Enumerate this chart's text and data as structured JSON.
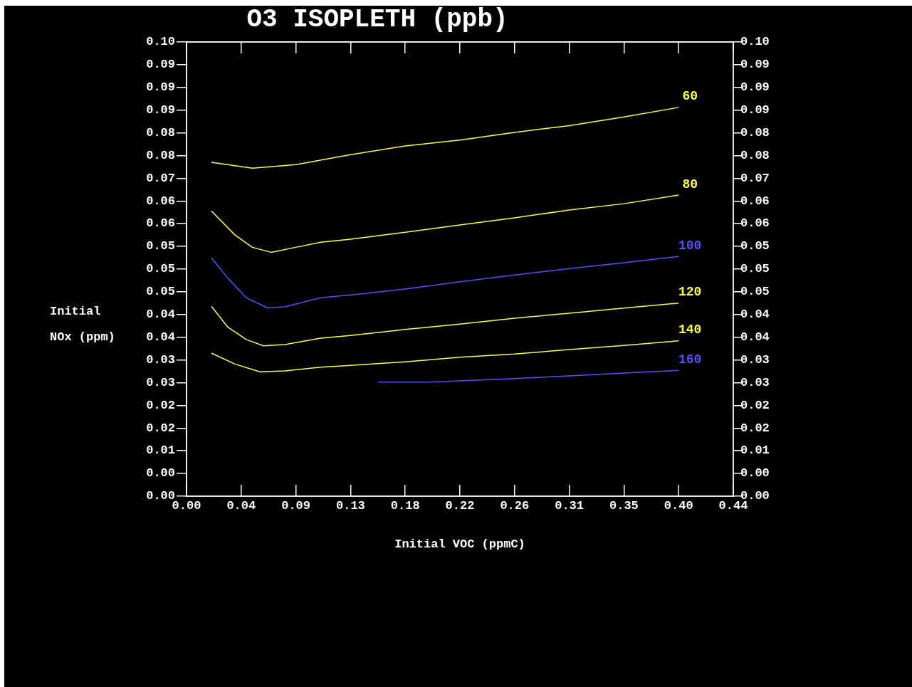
{
  "chart_data": {
    "type": "line",
    "title": "O3 ISOPLETH (ppb)",
    "xlabel": "Initial VOC (ppmC)",
    "ylabel": "Initial NOx (ppm)",
    "marker": "none",
    "xlim": [
      0,
      0.44
    ],
    "xticks": [
      {
        "value": 0,
        "label": "0.00"
      },
      {
        "value": 0.044,
        "label": "0.04"
      },
      {
        "value": 0.088,
        "label": "0.09"
      },
      {
        "value": 0.132,
        "label": "0.13"
      },
      {
        "value": 0.176,
        "label": "0.18"
      },
      {
        "value": 0.22,
        "label": "0.22"
      },
      {
        "value": 0.264,
        "label": "0.26"
      },
      {
        "value": 0.308,
        "label": "0.31"
      },
      {
        "value": 0.352,
        "label": "0.35"
      },
      {
        "value": 0.396,
        "label": "0.40"
      },
      {
        "value": 0.44,
        "label": "0.44"
      }
    ],
    "ylim": [
      0,
      0.1
    ],
    "yticks": [
      {
        "value": 0,
        "label": "0.00"
      },
      {
        "value": 0.005,
        "label": "0.00"
      },
      {
        "value": 0.01,
        "label": "0.01"
      },
      {
        "value": 0.015,
        "label": "0.02"
      },
      {
        "value": 0.02,
        "label": "0.02"
      },
      {
        "value": 0.025,
        "label": "0.03"
      },
      {
        "value": 0.03,
        "label": "0.03"
      },
      {
        "value": 0.035,
        "label": "0.04"
      },
      {
        "value": 0.04,
        "label": "0.04"
      },
      {
        "value": 0.045,
        "label": "0.05"
      },
      {
        "value": 0.05,
        "label": "0.05"
      },
      {
        "value": 0.055,
        "label": "0.05"
      },
      {
        "value": 0.06,
        "label": "0.06"
      },
      {
        "value": 0.065,
        "label": "0.06"
      },
      {
        "value": 0.07,
        "label": "0.07"
      },
      {
        "value": 0.075,
        "label": "0.08"
      },
      {
        "value": 0.08,
        "label": "0.08"
      },
      {
        "value": 0.085,
        "label": "0.09"
      },
      {
        "value": 0.09,
        "label": "0.09"
      },
      {
        "value": 0.095,
        "label": "0.09"
      },
      {
        "value": 0.1,
        "label": "0.10"
      }
    ],
    "y2lim": [
      0,
      0.1
    ],
    "y2ticks": [
      {
        "value": 0,
        "label": "0.00"
      },
      {
        "value": 0.005,
        "label": "0.00"
      },
      {
        "value": 0.01,
        "label": "0.01"
      },
      {
        "value": 0.015,
        "label": "0.02"
      },
      {
        "value": 0.02,
        "label": "0.02"
      },
      {
        "value": 0.025,
        "label": "0.03"
      },
      {
        "value": 0.03,
        "label": "0.03"
      },
      {
        "value": 0.035,
        "label": "0.04"
      },
      {
        "value": 0.04,
        "label": "0.04"
      },
      {
        "value": 0.045,
        "label": "0.05"
      },
      {
        "value": 0.05,
        "label": "0.05"
      },
      {
        "value": 0.055,
        "label": "0.05"
      },
      {
        "value": 0.06,
        "label": "0.06"
      },
      {
        "value": 0.065,
        "label": "0.06"
      },
      {
        "value": 0.07,
        "label": "0.07"
      },
      {
        "value": 0.075,
        "label": "0.08"
      },
      {
        "value": 0.08,
        "label": "0.08"
      },
      {
        "value": 0.085,
        "label": "0.09"
      },
      {
        "value": 0.09,
        "label": "0.09"
      },
      {
        "value": 0.095,
        "label": "0.09"
      },
      {
        "value": 0.1,
        "label": "0.10"
      }
    ],
    "series": [
      {
        "name": "60",
        "color": "#ffff33",
        "x": [
          0.02,
          0.053,
          0.088,
          0.132,
          0.176,
          0.22,
          0.264,
          0.308,
          0.352,
          0.396
        ],
        "values": [
          0.0735,
          0.0722,
          0.073,
          0.0752,
          0.0771,
          0.0784,
          0.0801,
          0.0816,
          0.0835,
          0.0856
        ]
      },
      {
        "name": "80",
        "color": "#ffff33",
        "x": [
          0.02,
          0.039,
          0.053,
          0.068,
          0.088,
          0.108,
          0.132,
          0.176,
          0.22,
          0.264,
          0.308,
          0.352,
          0.396
        ],
        "values": [
          0.0628,
          0.0575,
          0.0548,
          0.0537,
          0.0548,
          0.0559,
          0.0566,
          0.0581,
          0.0597,
          0.0613,
          0.063,
          0.0644,
          0.0663
        ]
      },
      {
        "name": "100",
        "color": "#5050ff",
        "x": [
          0.02,
          0.033,
          0.048,
          0.065,
          0.079,
          0.108,
          0.132,
          0.176,
          0.22,
          0.264,
          0.308,
          0.352,
          0.396
        ],
        "values": [
          0.0525,
          0.0481,
          0.0437,
          0.0415,
          0.0417,
          0.0437,
          0.0443,
          0.0456,
          0.0472,
          0.0487,
          0.0501,
          0.0514,
          0.0528
        ]
      },
      {
        "name": "120",
        "color": "#ffff33",
        "x": [
          0.02,
          0.033,
          0.048,
          0.062,
          0.079,
          0.108,
          0.132,
          0.176,
          0.22,
          0.264,
          0.308,
          0.352,
          0.396
        ],
        "values": [
          0.0418,
          0.0373,
          0.0345,
          0.0331,
          0.0334,
          0.0348,
          0.0354,
          0.0367,
          0.0379,
          0.0392,
          0.0403,
          0.0414,
          0.0425
        ]
      },
      {
        "name": "140",
        "color": "#ffff33",
        "x": [
          0.02,
          0.039,
          0.059,
          0.079,
          0.108,
          0.132,
          0.176,
          0.22,
          0.264,
          0.308,
          0.352,
          0.396
        ],
        "values": [
          0.0315,
          0.0291,
          0.0274,
          0.0276,
          0.0284,
          0.0288,
          0.0296,
          0.0306,
          0.0313,
          0.0323,
          0.0332,
          0.0342
        ]
      },
      {
        "name": "160",
        "color": "#5050ff",
        "x": [
          0.154,
          0.194,
          0.22,
          0.264,
          0.308,
          0.352,
          0.396
        ],
        "values": [
          0.0251,
          0.0251,
          0.0254,
          0.0259,
          0.0265,
          0.0271,
          0.0277
        ]
      }
    ]
  }
}
